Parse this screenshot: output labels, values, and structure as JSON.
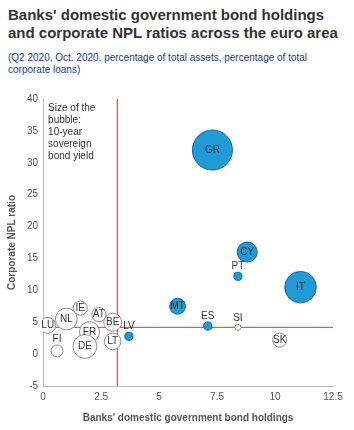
{
  "chart_data": {
    "type": "bubble",
    "title": "Banks' domestic government bond holdings and corporate NPL ratios across the euro area",
    "subtitle": "(Q2 2020, Oct. 2020, percentage of total assets, percentage of total corporate loans)",
    "annotation": "Size of the bubble: 10-year sovereign bond yield",
    "x_label": "Banks' domestic government bond holdings",
    "y_label": "Corporate NPL ratio",
    "xlim": [
      0,
      12.5
    ],
    "xticks": [
      0,
      2.5,
      5,
      7.5,
      10,
      12.5
    ],
    "ylim": [
      -5,
      40
    ],
    "yticks": [
      -5,
      0,
      5,
      10,
      15,
      20,
      25,
      30,
      35,
      40
    ],
    "grid": false,
    "x_line": 3.2,
    "y_line": 4.2,
    "points": [
      {
        "label": "GR",
        "x": 7.3,
        "y": 32,
        "size": 0.85,
        "color": "#1f9bd7"
      },
      {
        "label": "CY",
        "x": 8.8,
        "y": 16,
        "size": 0.38,
        "color": "#1f9bd7"
      },
      {
        "label": "PT",
        "x": 8.4,
        "y": 12.2,
        "size": 0.1,
        "color": "#1f9bd7"
      },
      {
        "label": "IT",
        "x": 11.1,
        "y": 10.5,
        "size": 0.65,
        "color": "#1f9bd7"
      },
      {
        "label": "MT",
        "x": 5.8,
        "y": 7.5,
        "size": 0.28,
        "color": "#1f9bd7"
      },
      {
        "label": "ES",
        "x": 7.1,
        "y": 4.4,
        "size": 0.1,
        "color": "#1f9bd7"
      },
      {
        "label": "SI",
        "x": 8.4,
        "y": 4.2,
        "size": -0.05,
        "color": "#ffffff"
      },
      {
        "label": "SK",
        "x": 10.2,
        "y": 2.2,
        "size": -0.24,
        "color": "#ffffff"
      },
      {
        "label": "LV",
        "x": 3.7,
        "y": 2.8,
        "size": 0.1,
        "color": "#1f9bd7"
      },
      {
        "label": "LT",
        "x": 3.0,
        "y": 2.0,
        "size": -0.3,
        "color": "#ffffff"
      },
      {
        "label": "BE",
        "x": 3.0,
        "y": 5.0,
        "size": -0.33,
        "color": "#ffffff"
      },
      {
        "label": "AT",
        "x": 2.4,
        "y": 6.2,
        "size": -0.24,
        "color": "#ffffff"
      },
      {
        "label": "IE",
        "x": 1.6,
        "y": 7.2,
        "size": -0.24,
        "color": "#ffffff"
      },
      {
        "label": "NL",
        "x": 1.0,
        "y": 5.5,
        "size": -0.42,
        "color": "#ffffff"
      },
      {
        "label": "FR",
        "x": 2.0,
        "y": 3.5,
        "size": -0.38,
        "color": "#ffffff"
      },
      {
        "label": "DE",
        "x": 1.8,
        "y": 1.2,
        "size": -0.47,
        "color": "#ffffff"
      },
      {
        "label": "LU",
        "x": 0.2,
        "y": 4.5,
        "size": -0.28,
        "color": "#ffffff"
      },
      {
        "label": "FI",
        "x": 0.6,
        "y": 0.5,
        "size": -0.19,
        "color": "#ffffff"
      }
    ]
  }
}
